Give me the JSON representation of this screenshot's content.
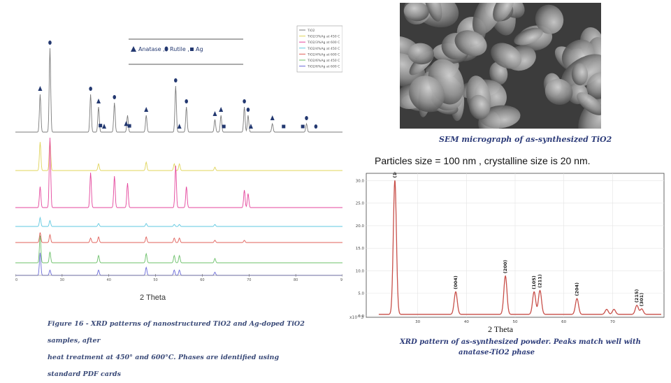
{
  "left_figure": {
    "legend_symbols": {
      "anatase": "Anatase ,",
      "rutile": "Rutile ,",
      "ag": "Ag"
    },
    "series_legend": [
      "TiO2",
      "TiO2/3%Ag at 450 C",
      "TiO2/3%Ag at 600 C",
      "TiO2/4%Ag at 450 C",
      "TiO2/4%Ag at 600 C",
      "TiO2/6%Ag at 450 C",
      "TiO2/6%Ag at 600 C"
    ],
    "x_ticks": [
      "20",
      "30",
      "40",
      "50",
      "60",
      "70",
      "80",
      "90"
    ],
    "xlabel": "2 Theta",
    "caption_line1": "Figure 16 - XRD patterns of nanostructured TiO2 and Ag-doped TiO2 samples, after",
    "caption_line2": "heat treatment at 450° and 600°C. Phases are identified using standard PDF cards"
  },
  "sem": {
    "caption": "SEM micrograph of as-synthesized TiO2"
  },
  "particles_text": "Particles size = 100 nm  , crystalline size is 20 nm.",
  "right_figure": {
    "xlabel": "2 Theta",
    "caption_line1": "XRD pattern of as-synthesized powder. Peaks match well with",
    "caption_line2": "anatase-TiO2 phase"
  },
  "chart_data": [
    {
      "type": "line",
      "title": "",
      "xlabel": "2 Theta",
      "ylabel": "",
      "xlim": [
        20,
        90
      ],
      "x_ticks": [
        20,
        30,
        40,
        50,
        60,
        70,
        80,
        90
      ],
      "series_colors": [
        "#7b7b7b",
        "#e0d45a",
        "#e4459c",
        "#5fc8e0",
        "#e0605a",
        "#6cc06a",
        "#6a6ad8"
      ],
      "series": [
        {
          "name": "TiO2",
          "peaks": [
            [
              25.3,
              0.45
            ],
            [
              27.4,
              1.0
            ],
            [
              36.1,
              0.45
            ],
            [
              37.8,
              0.3
            ],
            [
              41.2,
              0.35
            ],
            [
              44.0,
              0.2
            ],
            [
              48.0,
              0.2
            ],
            [
              54.3,
              0.55
            ],
            [
              56.6,
              0.3
            ],
            [
              62.7,
              0.15
            ],
            [
              64.0,
              0.2
            ],
            [
              69.0,
              0.3
            ],
            [
              69.8,
              0.2
            ],
            [
              75.0,
              0.1
            ],
            [
              82.3,
              0.1
            ]
          ]
        },
        {
          "name": "TiO2/3%Ag at 450 C",
          "peaks": [
            [
              25.3,
              0.85
            ],
            [
              27.4,
              0.9
            ],
            [
              37.8,
              0.2
            ],
            [
              48.0,
              0.25
            ],
            [
              54.0,
              0.2
            ],
            [
              55.1,
              0.2
            ],
            [
              62.7,
              0.1
            ]
          ]
        },
        {
          "name": "TiO2/3%Ag at 600 C",
          "peaks": [
            [
              25.3,
              0.3
            ],
            [
              27.4,
              1.0
            ],
            [
              36.1,
              0.5
            ],
            [
              41.2,
              0.45
            ],
            [
              44.0,
              0.35
            ],
            [
              54.3,
              0.6
            ],
            [
              56.6,
              0.3
            ],
            [
              69.0,
              0.25
            ],
            [
              69.8,
              0.2
            ]
          ]
        },
        {
          "name": "TiO2/4%Ag at 450 C",
          "peaks": [
            [
              25.3,
              0.45
            ],
            [
              27.4,
              0.3
            ],
            [
              37.8,
              0.15
            ],
            [
              48.0,
              0.15
            ],
            [
              54.0,
              0.1
            ],
            [
              55.1,
              0.1
            ],
            [
              62.7,
              0.1
            ]
          ]
        },
        {
          "name": "TiO2/4%Ag at 600 C",
          "peaks": [
            [
              25.3,
              0.45
            ],
            [
              27.4,
              0.35
            ],
            [
              36.1,
              0.2
            ],
            [
              37.8,
              0.25
            ],
            [
              48.0,
              0.25
            ],
            [
              54.0,
              0.2
            ],
            [
              55.1,
              0.2
            ],
            [
              62.7,
              0.1
            ],
            [
              69.0,
              0.1
            ]
          ]
        },
        {
          "name": "TiO2/6%Ag at 450 C",
          "peaks": [
            [
              25.3,
              0.75
            ],
            [
              27.4,
              0.3
            ],
            [
              37.8,
              0.2
            ],
            [
              48.0,
              0.25
            ],
            [
              54.0,
              0.2
            ],
            [
              55.1,
              0.2
            ],
            [
              62.7,
              0.12
            ]
          ]
        },
        {
          "name": "TiO2/6%Ag at 600 C",
          "peaks": [
            [
              25.3,
              0.85
            ],
            [
              27.4,
              0.2
            ],
            [
              37.8,
              0.2
            ],
            [
              48.0,
              0.3
            ],
            [
              54.0,
              0.2
            ],
            [
              55.1,
              0.2
            ],
            [
              62.7,
              0.12
            ]
          ]
        }
      ],
      "markers_on_top_trace": [
        {
          "phase": "Anatase",
          "x": 25.3
        },
        {
          "phase": "Rutile",
          "x": 27.4
        },
        {
          "phase": "Rutile",
          "x": 36.1
        },
        {
          "phase": "Anatase",
          "x": 37.8
        },
        {
          "phase": "Ag",
          "x": 38.2
        },
        {
          "phase": "Anatase",
          "x": 39.0
        },
        {
          "phase": "Rutile",
          "x": 41.2
        },
        {
          "phase": "Anatase",
          "x": 43.7
        },
        {
          "phase": "Ag",
          "x": 44.4
        },
        {
          "phase": "Anatase",
          "x": 48.0
        },
        {
          "phase": "Rutile",
          "x": 54.3
        },
        {
          "phase": "Anatase",
          "x": 55.1
        },
        {
          "phase": "Rutile",
          "x": 56.6
        },
        {
          "phase": "Anatase",
          "x": 62.7
        },
        {
          "phase": "Anatase",
          "x": 64.0
        },
        {
          "phase": "Ag",
          "x": 64.6
        },
        {
          "phase": "Rutile",
          "x": 69.0
        },
        {
          "phase": "Rutile",
          "x": 69.8
        },
        {
          "phase": "Anatase",
          "x": 70.4
        },
        {
          "phase": "Anatase",
          "x": 75.0
        },
        {
          "phase": "Ag",
          "x": 77.4
        },
        {
          "phase": "Ag",
          "x": 81.5
        },
        {
          "phase": "Rutile",
          "x": 82.3
        },
        {
          "phase": "Rutile",
          "x": 84.3
        }
      ]
    },
    {
      "type": "line",
      "title": "",
      "xlabel": "2 Theta",
      "ylabel": "",
      "xlim": [
        20,
        80
      ],
      "ylim": [
        0,
        31
      ],
      "y_ticks": [
        "0.0",
        "5.0",
        "10.0",
        "15.0",
        "20.0",
        "25.0",
        "30.0"
      ],
      "x_ticks": [
        "30",
        "40",
        "50",
        "60",
        "70"
      ],
      "y_multiplier": "x10^3",
      "line_color": "#c8504a",
      "peaks": [
        {
          "x": 25.3,
          "y": 30.0,
          "label": "(101)"
        },
        {
          "x": 37.8,
          "y": 5.3,
          "label": "(004)"
        },
        {
          "x": 48.0,
          "y": 8.8,
          "label": "(200)"
        },
        {
          "x": 53.9,
          "y": 5.3,
          "label": "(105)"
        },
        {
          "x": 55.1,
          "y": 5.6,
          "label": "(211)"
        },
        {
          "x": 62.7,
          "y": 3.8,
          "label": "(204)"
        },
        {
          "x": 68.8,
          "y": 1.4,
          "label": ""
        },
        {
          "x": 70.3,
          "y": 1.4,
          "label": ""
        },
        {
          "x": 75.0,
          "y": 2.3,
          "label": "(215)"
        },
        {
          "x": 76.0,
          "y": 1.5,
          "label": "(301)"
        }
      ]
    }
  ]
}
